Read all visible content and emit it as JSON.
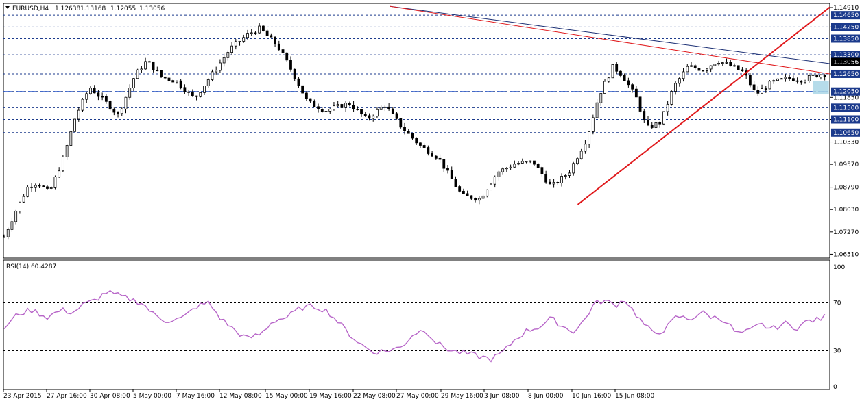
{
  "header": {
    "symbol": "EURUSD,H4",
    "open": "1.12638",
    "high": "1.13168",
    "low": "1.12055",
    "close": "1.13056"
  },
  "colors": {
    "background": "#ffffff",
    "frame": "#000000",
    "candle": "#000000",
    "level_line": "#1b3a8c",
    "triangle_line": "#e0191c",
    "upper_trend_line": "#1b2f74",
    "rsi_line": "#b765c8",
    "price_tag_bg": "#1b3a8c",
    "current_tag_bg": "#000000",
    "highlight_box": "#a9d6e6"
  },
  "chart_data": [
    {
      "type": "candlestick",
      "title": "EURUSD,H4",
      "y_ticks": [
        "1.14910",
        "1.14250",
        "1.13300",
        "1.12650",
        "1.11850",
        "1.11100",
        "1.10330",
        "1.09570",
        "1.08790",
        "1.08030",
        "1.07270",
        "1.06510"
      ],
      "ylim": [
        1.0638,
        1.1505
      ],
      "x_ticks": [
        "23 Apr 2015",
        "27 Apr 16:00",
        "30 Apr 08:00",
        "5 May 00:00",
        "7 May 16:00",
        "12 May 08:00",
        "15 May 00:00",
        "19 May 16:00",
        "22 May 08:00",
        "27 May 00:00",
        "29 May 16:00",
        "3 Jun 08:00",
        "8 Jun 00:00",
        "10 Jun 16:00",
        "15 Jun 08:00"
      ],
      "horizontal_levels": [
        {
          "value": 1.1465,
          "label": "1.14650"
        },
        {
          "value": 1.1425,
          "label": "1.14250"
        },
        {
          "value": 1.1385,
          "label": "1.13850"
        },
        {
          "value": 1.133,
          "label": "1.13300"
        },
        {
          "value": 1.1265,
          "label": "1.12650"
        },
        {
          "value": 1.1205,
          "label": "1.12050"
        },
        {
          "value": 1.115,
          "label": "1.11500"
        },
        {
          "value": 1.111,
          "label": "1.11100"
        },
        {
          "value": 1.1065,
          "label": "1.10650"
        }
      ],
      "current_price": {
        "value": 1.13056,
        "label": "1.13056"
      },
      "candles": {
        "count": 210,
        "path": [
          [
            0,
            1.071
          ],
          [
            10,
            1.08
          ],
          [
            20,
            1.088
          ],
          [
            28,
            1.0895
          ],
          [
            38,
            1.086
          ],
          [
            50,
            1.098
          ],
          [
            60,
            1.112
          ],
          [
            72,
            1.122
          ],
          [
            85,
            1.117
          ],
          [
            96,
            1.1125
          ],
          [
            110,
            1.126
          ],
          [
            120,
            1.131
          ],
          [
            132,
            1.1255
          ],
          [
            145,
            1.124
          ],
          [
            160,
            1.118
          ],
          [
            175,
            1.1265
          ],
          [
            190,
            1.135
          ],
          [
            205,
            1.14
          ],
          [
            215,
            1.142
          ],
          [
            230,
            1.136
          ],
          [
            240,
            1.129
          ],
          [
            255,
            1.117
          ],
          [
            270,
            1.114
          ],
          [
            290,
            1.1165
          ],
          [
            305,
            1.111
          ],
          [
            320,
            1.116
          ],
          [
            335,
            1.108
          ],
          [
            350,
            1.102
          ],
          [
            365,
            1.098
          ],
          [
            385,
            1.085
          ],
          [
            400,
            1.084
          ],
          [
            415,
            1.093
          ],
          [
            430,
            1.096
          ],
          [
            445,
            1.0965
          ],
          [
            460,
            1.088
          ],
          [
            475,
            1.093
          ],
          [
            490,
            1.1045
          ],
          [
            500,
            1.119
          ],
          [
            512,
            1.129
          ],
          [
            520,
            1.126
          ],
          [
            532,
            1.118
          ],
          [
            540,
            1.108
          ],
          [
            552,
            1.11
          ],
          [
            563,
            1.122
          ],
          [
            575,
            1.129
          ],
          [
            588,
            1.128
          ],
          [
            600,
            1.131
          ],
          [
            612,
            1.129
          ],
          [
            622,
            1.127
          ],
          [
            632,
            1.1195
          ],
          [
            645,
            1.1235
          ],
          [
            660,
            1.125
          ],
          [
            672,
            1.1245
          ],
          [
            682,
            1.126
          ],
          [
            690,
            1.1265
          ]
        ]
      },
      "trend_lines": [
        {
          "name": "upper-trend-line",
          "from": [
            286,
            1.1495
          ],
          "to": [
            870,
            1.13
          ]
        },
        {
          "name": "triangle-upper-line",
          "from": [
            286,
            1.1495
          ],
          "to": [
            870,
            1.1265
          ]
        },
        {
          "name": "triangle-lower-line",
          "from": [
            425,
            1.082
          ],
          "to": [
            870,
            1.1492
          ]
        }
      ],
      "highlight_zone": {
        "from_index": 680,
        "to_index": 690,
        "low": 1.1195,
        "high": 1.124
      }
    },
    {
      "type": "line",
      "title": "RSI(14) 60.4287",
      "ylim": [
        0,
        100
      ],
      "y_ticks": [
        "100",
        "70",
        "30",
        "0"
      ],
      "levels": [
        70,
        30
      ],
      "series": [
        {
          "name": "RSI(14)",
          "path": [
            [
              0,
              49
            ],
            [
              12,
              61
            ],
            [
              24,
              64
            ],
            [
              36,
              58
            ],
            [
              48,
              64
            ],
            [
              58,
              62
            ],
            [
              66,
              68
            ],
            [
              76,
              72
            ],
            [
              86,
              79
            ],
            [
              96,
              76
            ],
            [
              106,
              73
            ],
            [
              116,
              70
            ],
            [
              126,
              60
            ],
            [
              136,
              55
            ],
            [
              150,
              57
            ],
            [
              162,
              67
            ],
            [
              172,
              70
            ],
            [
              182,
              57
            ],
            [
              194,
              47
            ],
            [
              204,
              40
            ],
            [
              216,
              44
            ],
            [
              226,
              55
            ],
            [
              238,
              58
            ],
            [
              250,
              66
            ],
            [
              262,
              67
            ],
            [
              272,
              63
            ],
            [
              282,
              53
            ],
            [
              292,
              42
            ],
            [
              302,
              34
            ],
            [
              310,
              29
            ],
            [
              322,
              30
            ],
            [
              334,
              33
            ],
            [
              344,
              44
            ],
            [
              354,
              48
            ],
            [
              364,
              36
            ],
            [
              376,
              30
            ],
            [
              386,
              28
            ],
            [
              396,
              26
            ],
            [
              410,
              23
            ],
            [
              420,
              29
            ],
            [
              430,
              40
            ],
            [
              440,
              47
            ],
            [
              450,
              50
            ],
            [
              460,
              57
            ],
            [
              470,
              50
            ],
            [
              480,
              46
            ],
            [
              488,
              56
            ],
            [
              496,
              69
            ],
            [
              504,
              72
            ],
            [
              514,
              68
            ],
            [
              522,
              73
            ],
            [
              530,
              62
            ],
            [
              538,
              52
            ],
            [
              546,
              44
            ],
            [
              556,
              48
            ],
            [
              566,
              59
            ],
            [
              576,
              56
            ],
            [
              586,
              62
            ],
            [
              596,
              58
            ],
            [
              606,
              56
            ],
            [
              616,
              44
            ],
            [
              626,
              46
            ],
            [
              636,
              52
            ],
            [
              646,
              48
            ],
            [
              656,
              53
            ],
            [
              666,
              49
            ],
            [
              676,
              55
            ],
            [
              686,
              56
            ],
            [
              690,
              60.4287
            ]
          ]
        }
      ]
    }
  ]
}
